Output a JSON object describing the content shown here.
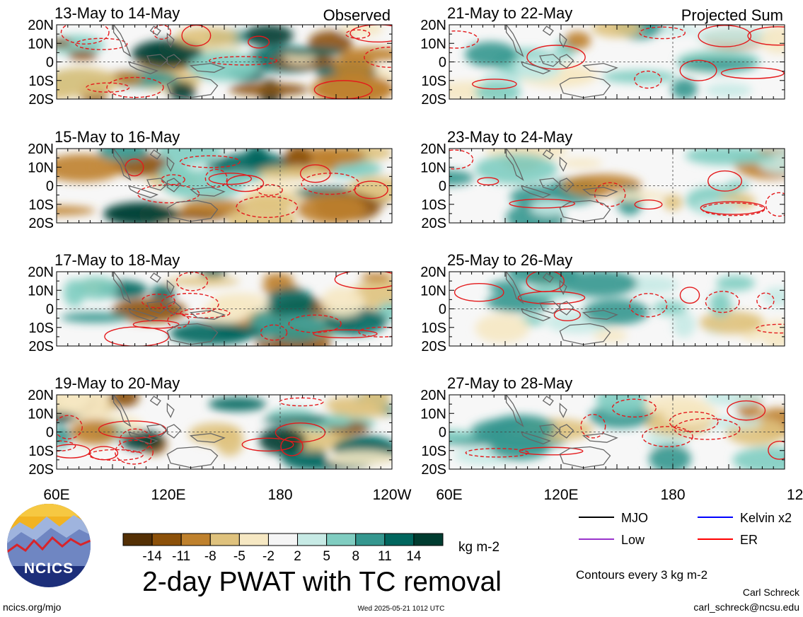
{
  "chart_data": {
    "type": "heatmap",
    "title": "2-day PWAT with TC removal",
    "quantity": "PWAT",
    "units": "kg m-2",
    "x_ticks": [
      "60E",
      "120E",
      "180",
      "120W"
    ],
    "y_ticks": [
      "20N",
      "10N",
      "0",
      "10S",
      "20S"
    ],
    "xlim": [
      "60E",
      "120W"
    ],
    "ylim": [
      "20S",
      "20N"
    ],
    "grid": "dashed lines at equator and 180",
    "columns": [
      {
        "label": "Observed",
        "panels": [
          "13-May to 14-May",
          "15-May to 16-May",
          "17-May to 18-May",
          "19-May to 20-May"
        ]
      },
      {
        "label": "Projected Sum",
        "panels": [
          "21-May to 22-May",
          "23-May to 24-May",
          "25-May to 26-May",
          "27-May to 28-May"
        ]
      }
    ],
    "colorbar": {
      "tick_labels": [
        "-14",
        "-11",
        "-8",
        "-5",
        "-2",
        "2",
        "5",
        "8",
        "11",
        "14"
      ],
      "colors": [
        "#543005",
        "#8c510a",
        "#bf812d",
        "#dfc27d",
        "#f6e8c3",
        "#f5f5f5",
        "#c7eae5",
        "#80cdc1",
        "#35978f",
        "#01665e",
        "#003c30"
      ]
    },
    "contours_note": "Contours every 3 kg m-2",
    "legend": [
      {
        "label": "MJO",
        "color": "#000000"
      },
      {
        "label": "Kelvin x2",
        "color": "#0000ff"
      },
      {
        "label": "Low",
        "color": "#9933cc"
      },
      {
        "label": "ER",
        "color": "#ff0000"
      }
    ]
  },
  "branding": {
    "logo_text": "NCICS",
    "website": "ncics.org/mjo",
    "timestamp": "Wed 2025-05-21 1012 UTC",
    "author": "Carl Schreck",
    "email": "carl_schreck@ncsu.edu"
  }
}
